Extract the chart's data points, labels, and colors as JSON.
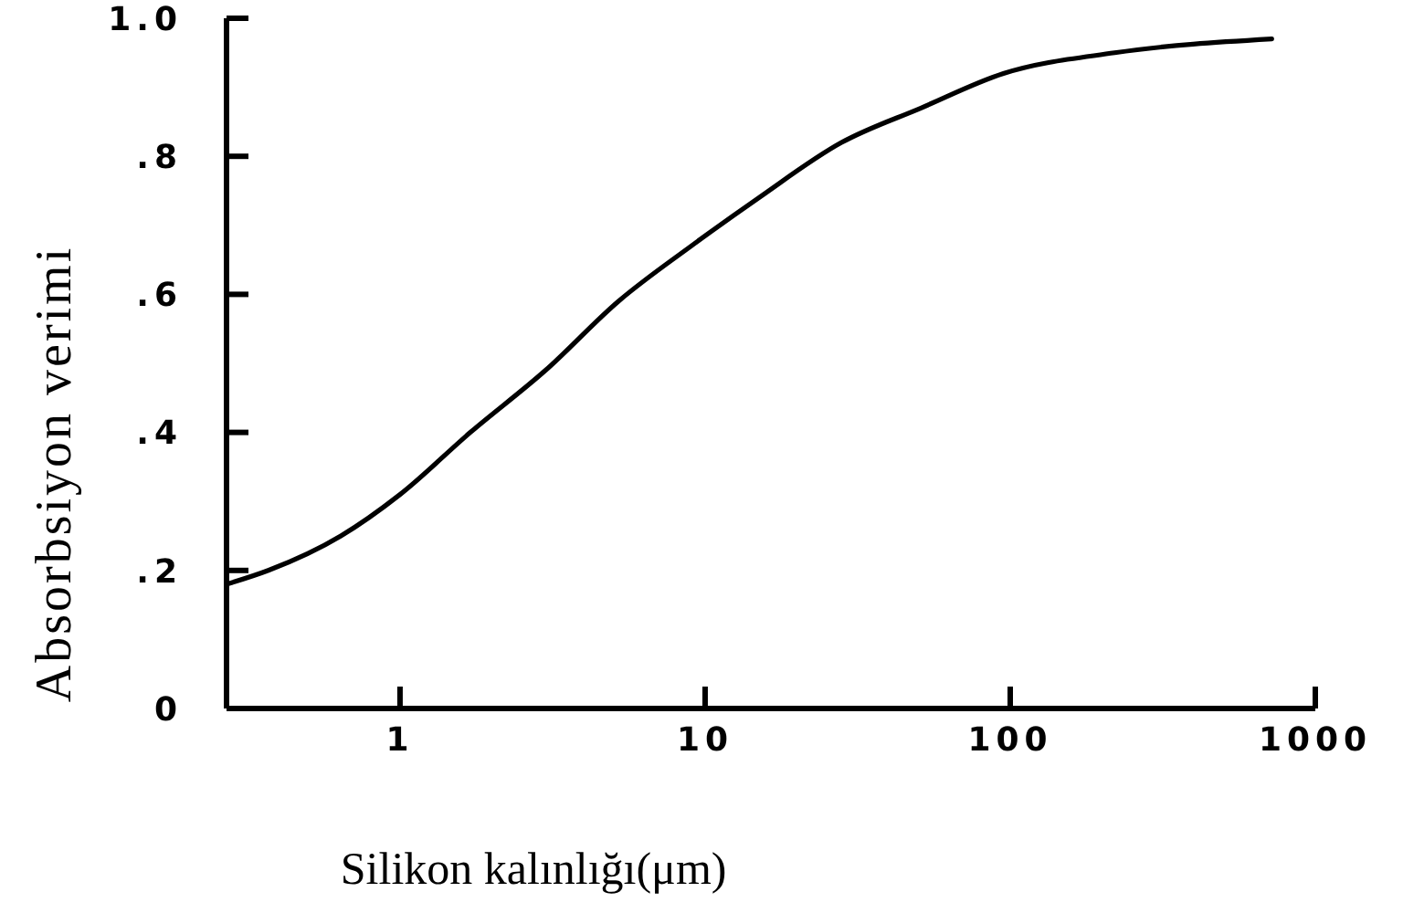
{
  "chart_data": {
    "type": "line",
    "xlabel": "Silikon kalınlığı(μm)",
    "ylabel": "Absorbsiyon verimi",
    "log": "x",
    "x": [
      0.27,
      0.37,
      0.64,
      1.0,
      1.7,
      3.0,
      5.2,
      9.0,
      15,
      28,
      51,
      95,
      220,
      720
    ],
    "values": [
      0.18,
      0.2,
      0.25,
      0.31,
      0.4,
      0.49,
      0.59,
      0.67,
      0.74,
      0.82,
      0.87,
      0.92,
      0.95,
      0.97
    ],
    "color": "#000000",
    "xlim": [
      0.27,
      1000
    ],
    "xticks": [
      1,
      10,
      100,
      1000
    ],
    "ylim": [
      0,
      1
    ],
    "yticks": [
      0,
      {
        "value": 0.2,
        "label": ".2"
      },
      {
        "value": 0.4,
        "label": ".4"
      },
      {
        "value": 0.6,
        "label": ".6"
      },
      {
        "value": 0.8,
        "label": ".8"
      },
      {
        "value": 1,
        "label": "1.0"
      }
    ]
  }
}
